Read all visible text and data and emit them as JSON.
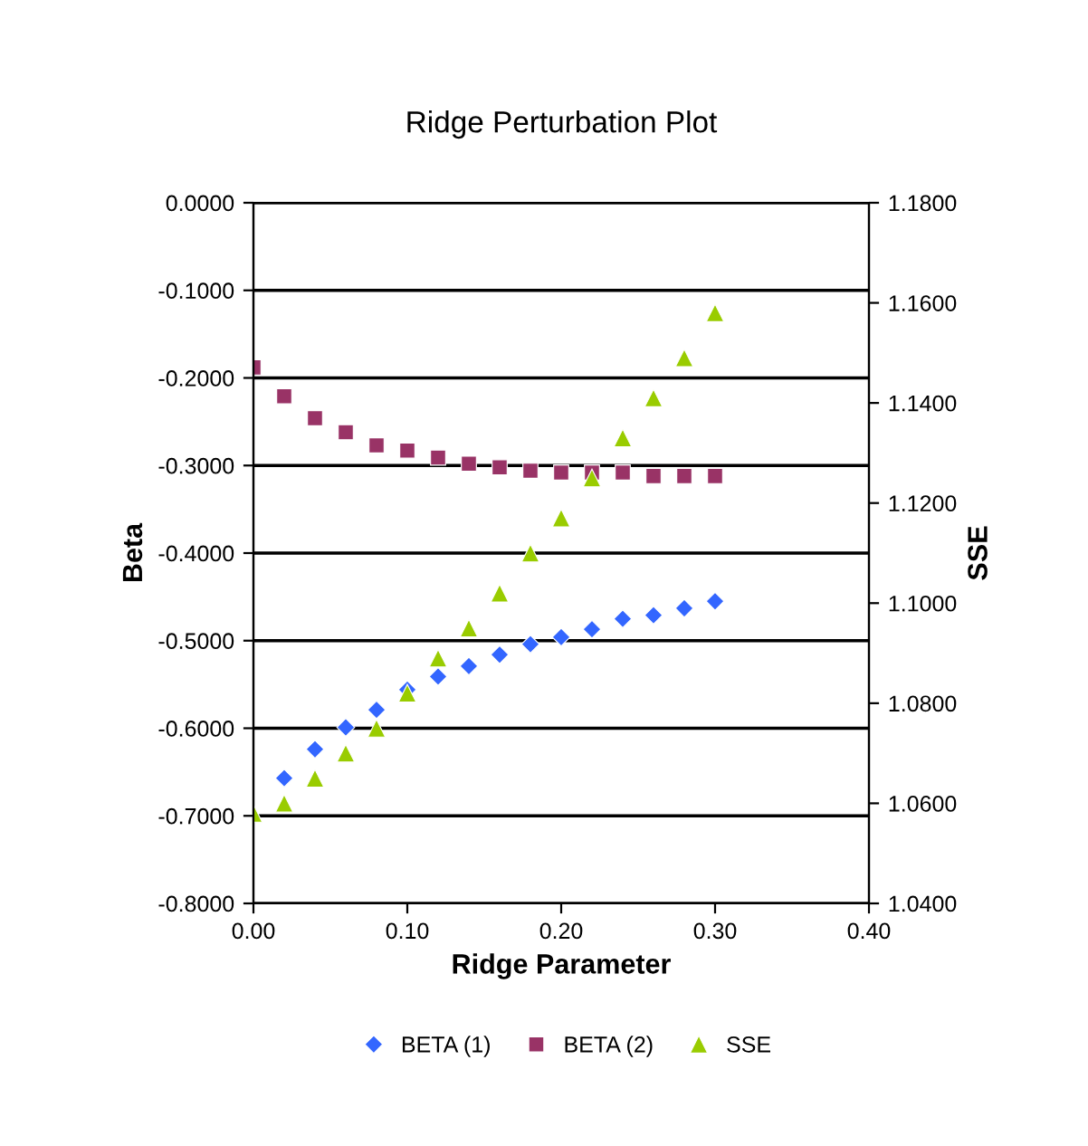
{
  "chart_data": {
    "type": "scatter",
    "title": "Ridge Perturbation Plot",
    "xlabel": "Ridge Parameter",
    "ylabel": "Beta",
    "y2label": "SSE",
    "x": [
      0.0,
      0.02,
      0.04,
      0.06,
      0.08,
      0.1,
      0.12,
      0.14,
      0.16,
      0.18,
      0.2,
      0.22,
      0.24,
      0.26,
      0.28,
      0.3
    ],
    "series": [
      {
        "name": "BETA (1)",
        "color": "#3366ff",
        "marker": "diamond",
        "values": [
          null,
          -0.657,
          -0.624,
          -0.599,
          -0.579,
          -0.556,
          -0.541,
          -0.529,
          -0.516,
          -0.504,
          -0.496,
          -0.487,
          -0.475,
          -0.471,
          -0.463,
          -0.455
        ]
      },
      {
        "name": "BETA (2)",
        "color": "#993366",
        "marker": "square",
        "values": [
          -0.188,
          -0.221,
          -0.246,
          -0.262,
          -0.277,
          -0.283,
          -0.291,
          -0.298,
          -0.302,
          -0.306,
          -0.308,
          -0.308,
          -0.308,
          -0.312,
          -0.312,
          -0.312
        ]
      },
      {
        "name": "SSE",
        "color": "#99cc00",
        "marker": "triangle",
        "axis": "y2",
        "values": [
          1.058,
          1.06,
          1.065,
          1.07,
          1.075,
          1.082,
          1.089,
          1.095,
          1.102,
          1.11,
          1.117,
          1.125,
          1.133,
          1.141,
          1.149,
          1.158
        ]
      }
    ],
    "xlim": [
      0,
      0.4
    ],
    "xticks": [
      {
        "value": 0,
        "label": "0.00"
      },
      {
        "value": 0.1,
        "label": "0.10"
      },
      {
        "value": 0.2,
        "label": "0.20"
      },
      {
        "value": 0.3,
        "label": "0.30"
      },
      {
        "value": 0.4,
        "label": "0.40"
      }
    ],
    "ylim": [
      -0.8,
      0
    ],
    "yticks": [
      {
        "value": -0.8,
        "label": "-0.8000"
      },
      {
        "value": -0.7,
        "label": "-0.7000"
      },
      {
        "value": -0.6,
        "label": "-0.6000"
      },
      {
        "value": -0.5,
        "label": "-0.5000"
      },
      {
        "value": -0.4,
        "label": "-0.4000"
      },
      {
        "value": -0.3,
        "label": "-0.3000"
      },
      {
        "value": -0.2,
        "label": "-0.2000"
      },
      {
        "value": -0.1,
        "label": "-0.1000"
      },
      {
        "value": 0,
        "label": "0.0000"
      }
    ],
    "y2lim": [
      1.04,
      1.18
    ],
    "y2ticks": [
      {
        "value": 1.04,
        "label": "1.0400"
      },
      {
        "value": 1.06,
        "label": "1.0600"
      },
      {
        "value": 1.08,
        "label": "1.0800"
      },
      {
        "value": 1.1,
        "label": "1.1000"
      },
      {
        "value": 1.12,
        "label": "1.1200"
      },
      {
        "value": 1.14,
        "label": "1.1400"
      },
      {
        "value": 1.16,
        "label": "1.1600"
      },
      {
        "value": 1.18,
        "label": "1.1800"
      }
    ],
    "grid": "y",
    "legend": "bottom"
  }
}
